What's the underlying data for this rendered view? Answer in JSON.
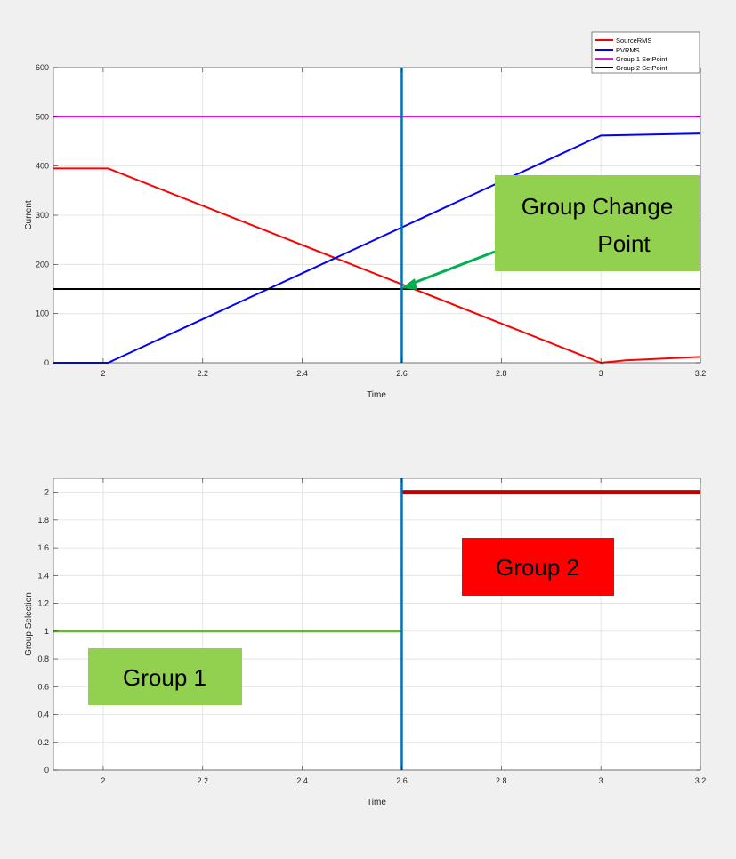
{
  "chart_data": [
    {
      "type": "line",
      "xlabel": "Time",
      "ylabel": "Current",
      "xlim": [
        1.9,
        3.2
      ],
      "ylim": [
        0,
        600
      ],
      "xticks": [
        2,
        2.2,
        2.4,
        2.6,
        2.8,
        3,
        3.2
      ],
      "yticks": [
        0,
        100,
        200,
        300,
        400,
        500,
        600
      ],
      "tick_labels_x": [
        "2",
        "2.2",
        "2.4",
        "2.6",
        "2.8",
        "3",
        "3.2"
      ],
      "tick_labels_y": [
        "0",
        "100",
        "200",
        "300",
        "400",
        "500",
        "600"
      ],
      "grid": true,
      "legend_position": "top-right",
      "series": [
        {
          "name": "SourceRMS",
          "color": "#ff0000",
          "x": [
            1.9,
            2.01,
            3.0,
            3.05,
            3.2
          ],
          "y": [
            395,
            395,
            0,
            5,
            12
          ]
        },
        {
          "name": "PVRMS",
          "color": "#0000ff",
          "x": [
            1.9,
            2.01,
            3.0,
            3.2
          ],
          "y": [
            0,
            0,
            462,
            466
          ]
        },
        {
          "name": "Group 1 SetPoint",
          "color": "#ff00ff",
          "x": [
            1.9,
            3.2
          ],
          "y": [
            500,
            500
          ]
        },
        {
          "name": "Group 2 SetPoint",
          "color": "#000000",
          "x": [
            1.9,
            3.2
          ],
          "y": [
            150,
            150
          ]
        }
      ],
      "vline": {
        "x": 2.6,
        "color": "#0072bd"
      },
      "annotations": [
        {
          "text_lines": [
            "Group Change",
            "Point"
          ],
          "bg": "#92d050",
          "arrow_color": "#00b050",
          "points_to": [
            2.6,
            150
          ]
        }
      ]
    },
    {
      "type": "line",
      "xlabel": "Time",
      "ylabel": "Group Selection",
      "xlim": [
        1.9,
        3.2
      ],
      "ylim": [
        0,
        2.1
      ],
      "xticks": [
        2,
        2.2,
        2.4,
        2.6,
        2.8,
        3,
        3.2
      ],
      "yticks": [
        0,
        0.2,
        0.4,
        0.6,
        0.8,
        1,
        1.2,
        1.4,
        1.6,
        1.8,
        2
      ],
      "tick_labels_x": [
        "2",
        "2.2",
        "2.4",
        "2.6",
        "2.8",
        "3",
        "3.2"
      ],
      "tick_labels_y": [
        "0",
        "0.2",
        "0.4",
        "0.6",
        "0.8",
        "1",
        "1.2",
        "1.4",
        "1.6",
        "1.8",
        "2"
      ],
      "grid": true,
      "series": [
        {
          "color": "#70ad47",
          "x": [
            1.9,
            2.6
          ],
          "y": [
            1,
            1
          ]
        },
        {
          "color": "#c00000",
          "x": [
            2.6,
            3.2
          ],
          "y": [
            2,
            2
          ]
        }
      ],
      "vline": {
        "x": 2.6,
        "color": "#0072bd"
      },
      "annotations": [
        {
          "text": "Group 2",
          "bg": "#ff0000"
        },
        {
          "text": "Group 1",
          "bg": "#92d050"
        }
      ]
    }
  ]
}
